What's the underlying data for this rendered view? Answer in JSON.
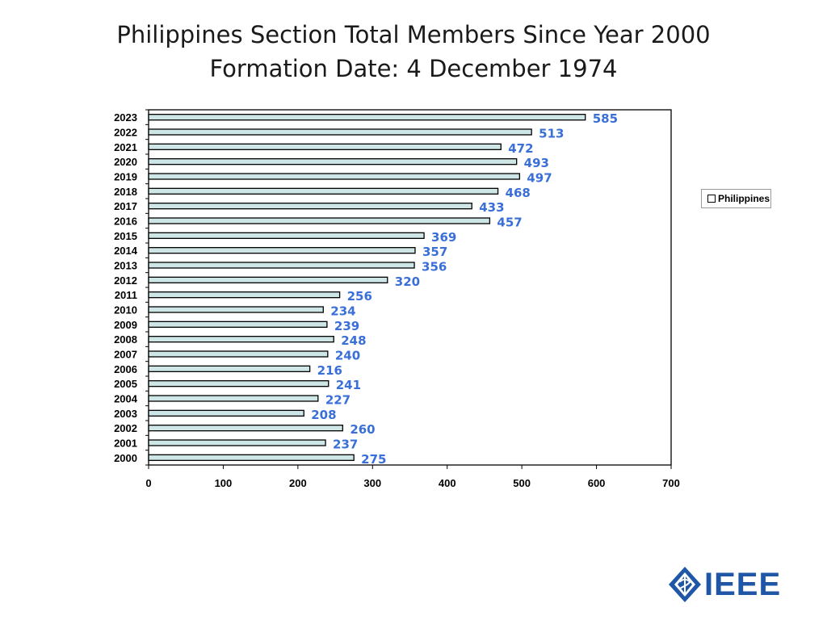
{
  "title_line1": "Philippines Section Total Members Since Year 2000",
  "title_line2": "Formation Date: 4 December 1974",
  "logo_text": "IEEE",
  "colors": {
    "bar_fill": "#cfe6e6",
    "bar_stroke": "#000000",
    "label": "#3a6fd8",
    "logo": "#1f56a5"
  },
  "chart_data": {
    "type": "bar",
    "orientation": "horizontal",
    "categories": [
      "2023",
      "2022",
      "2021",
      "2020",
      "2019",
      "2018",
      "2017",
      "2016",
      "2015",
      "2014",
      "2013",
      "2012",
      "2011",
      "2010",
      "2009",
      "2008",
      "2007",
      "2006",
      "2005",
      "2004",
      "2003",
      "2002",
      "2001",
      "2000"
    ],
    "series": [
      {
        "name": "Philippines",
        "values": [
          585,
          513,
          472,
          493,
          497,
          468,
          433,
          457,
          369,
          357,
          356,
          320,
          256,
          234,
          239,
          248,
          240,
          216,
          241,
          227,
          208,
          260,
          237,
          275
        ]
      }
    ],
    "xlim": [
      0,
      700
    ],
    "xticks": [
      0,
      100,
      200,
      300,
      400,
      500,
      600,
      700
    ],
    "grid": false,
    "legend": "right"
  }
}
